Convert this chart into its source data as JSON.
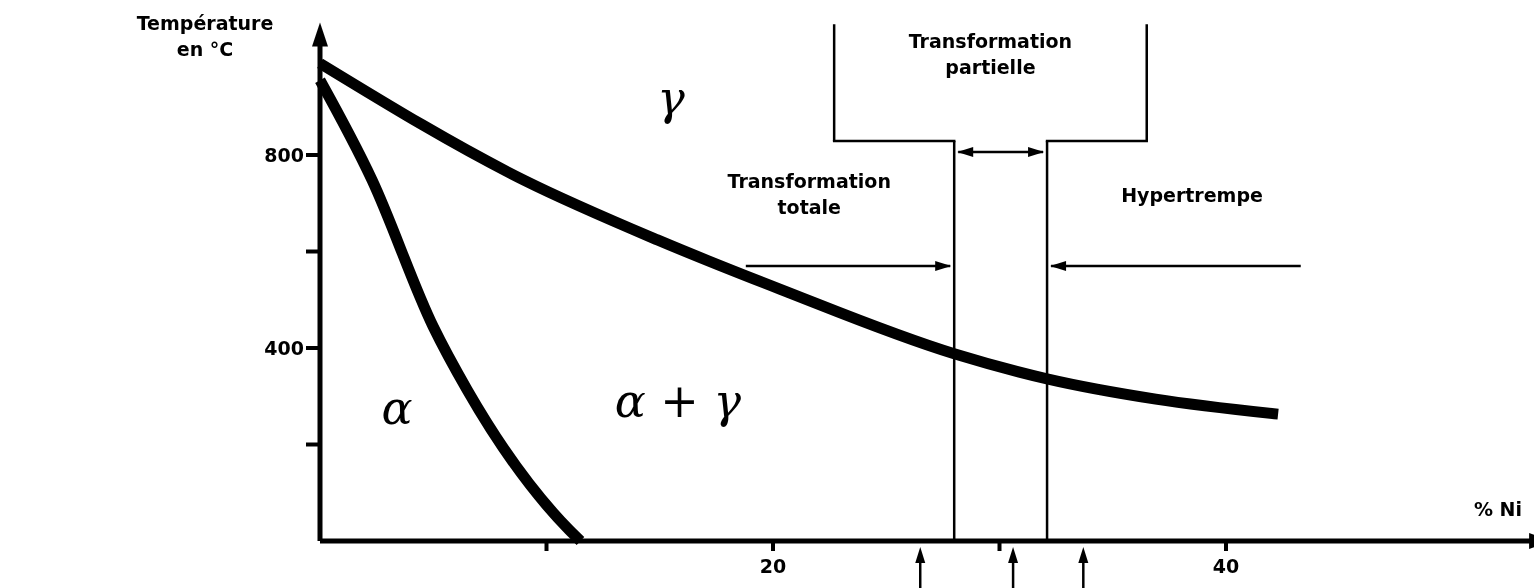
{
  "chart_data": {
    "type": "line",
    "ylabel": "Température\nen °C",
    "xlabel": "% Ni",
    "xlim": [
      0,
      54
    ],
    "ylim": [
      0,
      1050
    ],
    "xticks": [
      {
        "value": 10,
        "label": null
      },
      20,
      {
        "value": 30,
        "label": null
      },
      40
    ],
    "yticks": [
      {
        "value": 200,
        "label": null
      },
      400,
      {
        "value": 600,
        "label": null
      },
      800
    ],
    "series": [
      {
        "color": "#000000",
        "x": [
          0,
          2.3,
          5.0,
          6.5,
          11.0,
          11.5
        ],
        "values": [
          955,
          748,
          444,
          313,
          23,
          0
        ]
      },
      {
        "color": "#000000",
        "x": [
          0,
          9.0,
          14.9,
          20.3,
          28.0,
          32.1,
          36.9,
          42.3
        ],
        "values": [
          990,
          748,
          624,
          522,
          388,
          336,
          294,
          263
        ]
      }
    ],
    "ref_lines": [
      {
        "axis": "x",
        "value": 28.0,
        "color": "#000000"
      },
      {
        "axis": "x",
        "value": 32.1,
        "color": "#000000"
      }
    ],
    "annotations": [
      "α",
      "α + γ",
      "γ",
      "Transformation\ntotale",
      "Hypertrempe",
      "Transformation\npartielle"
    ]
  }
}
